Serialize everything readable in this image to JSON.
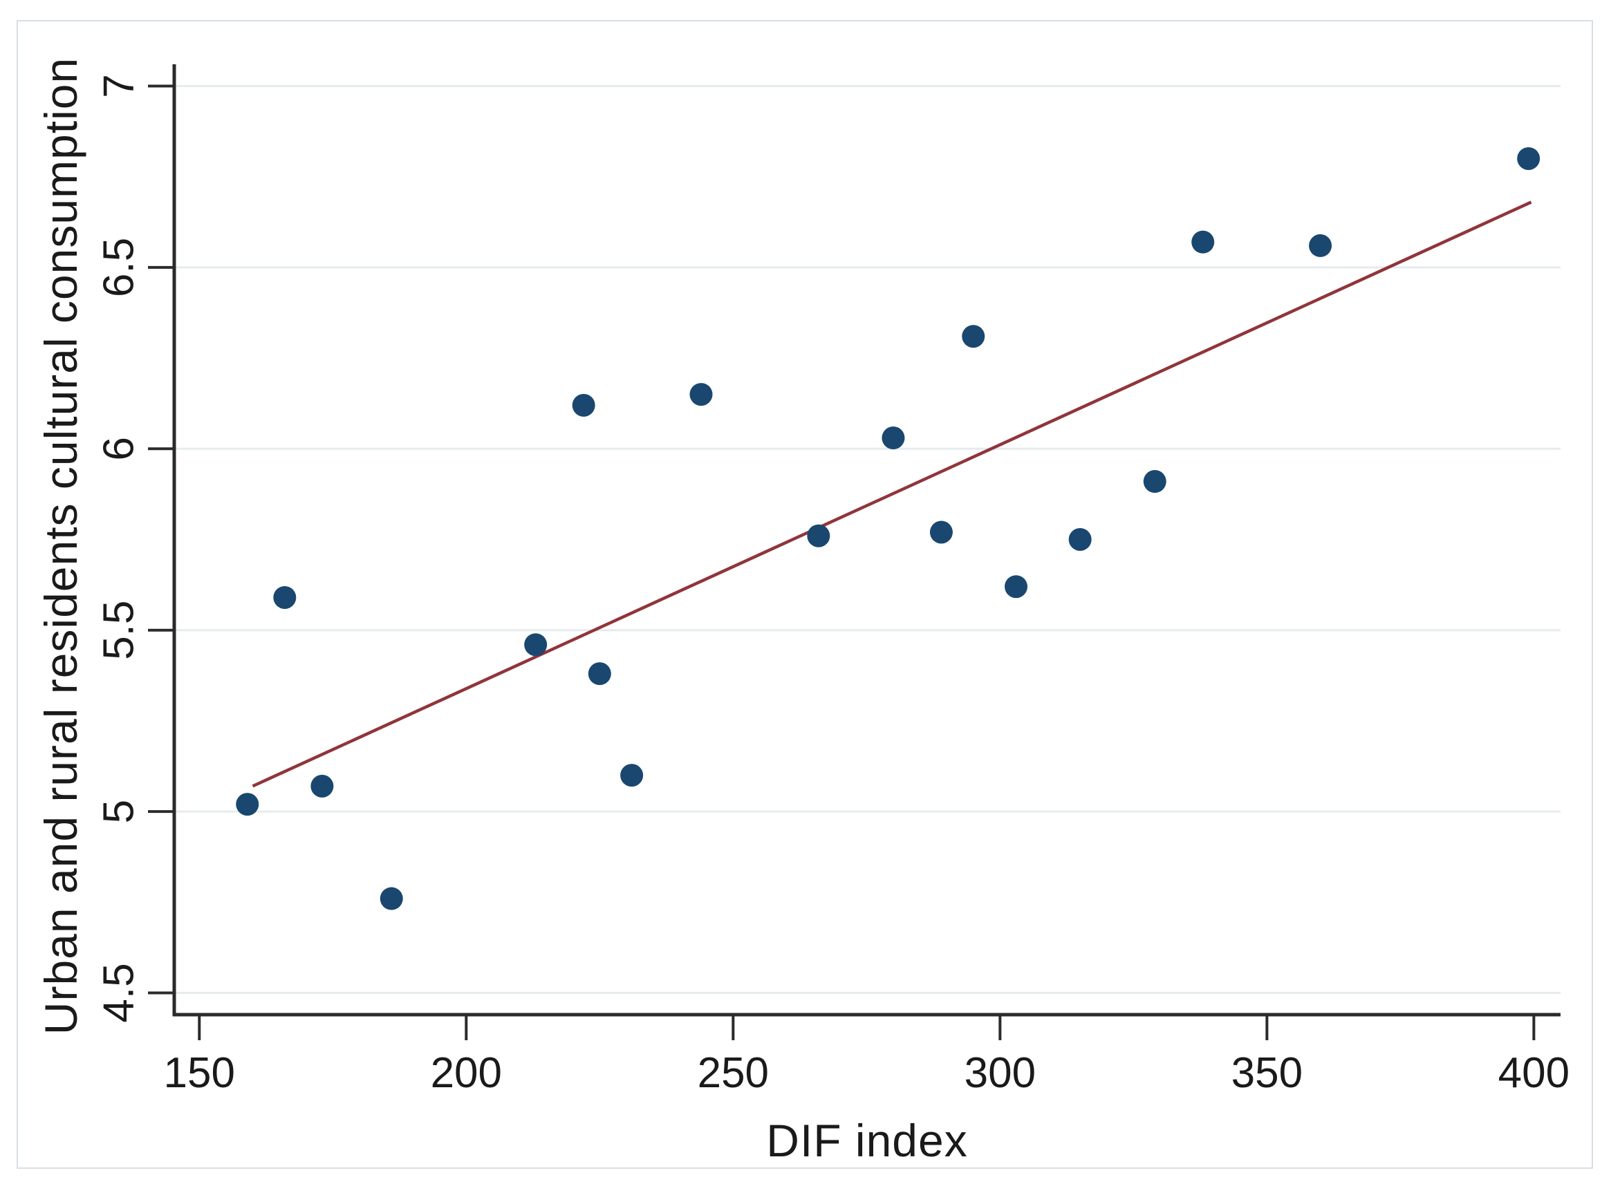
{
  "figure": {
    "background": "#ffffff",
    "border_color": "#d8dfe4"
  },
  "chart_data": {
    "type": "scatter",
    "title": "",
    "xlabel": "DIF index",
    "ylabel": "Urban and rural residents cultural consumption",
    "xlim": [
      145.3,
      405.0
    ],
    "ylim": [
      4.44,
      7.06
    ],
    "grid": "horizontal",
    "legend": "none",
    "x_ticks": [
      150,
      200,
      250,
      300,
      350,
      400
    ],
    "x_tick_labels": [
      "150",
      "200",
      "250",
      "300",
      "350",
      "400"
    ],
    "y_ticks": [
      4.5,
      5,
      5.5,
      6,
      6.5,
      7
    ],
    "y_tick_labels": [
      "4.5",
      "5",
      "5.5",
      "6",
      "6.5",
      "7"
    ],
    "series": [
      {
        "name": "observations",
        "points": [
          [
            159,
            5.02
          ],
          [
            166,
            5.59
          ],
          [
            173,
            5.07
          ],
          [
            186,
            4.76
          ],
          [
            213,
            5.46
          ],
          [
            222,
            6.12
          ],
          [
            225,
            5.38
          ],
          [
            231,
            5.1
          ],
          [
            244,
            6.15
          ],
          [
            266,
            5.76
          ],
          [
            280,
            6.03
          ],
          [
            289,
            5.77
          ],
          [
            295,
            6.31
          ],
          [
            303,
            5.62
          ],
          [
            315,
            5.75
          ],
          [
            329,
            5.91
          ],
          [
            338,
            6.57
          ],
          [
            360,
            6.56
          ],
          [
            399,
            6.8
          ]
        ]
      }
    ],
    "trend_line": {
      "x1": 160,
      "y1": 5.07,
      "x2": 399.5,
      "y2": 6.68
    },
    "colors": {
      "point": "#1a476f",
      "trend": "#90353b",
      "grid": "#e6ebee",
      "axis": "#2b2b2b",
      "text": "#1a1a1a"
    }
  }
}
